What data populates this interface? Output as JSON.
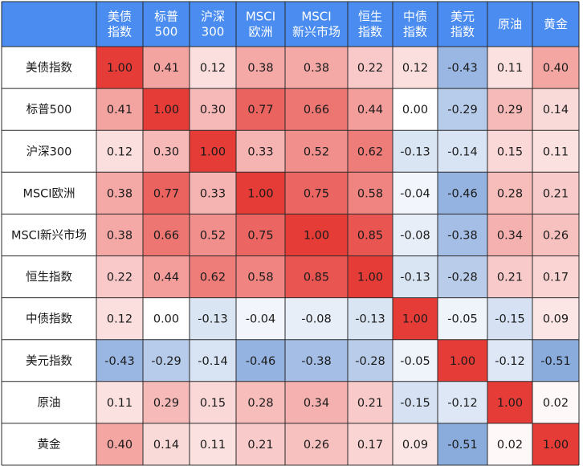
{
  "chart_data": {
    "type": "heatmap",
    "columns": [
      [
        "美债",
        "指数"
      ],
      [
        "标普",
        "500"
      ],
      [
        "沪深",
        "300"
      ],
      [
        "MSCI",
        "欧洲"
      ],
      [
        "MSCI",
        "新兴市场"
      ],
      [
        "恒生",
        "指数"
      ],
      [
        "中债",
        "指数"
      ],
      [
        "美元",
        "指数"
      ],
      [
        "原油"
      ],
      [
        "黄金"
      ]
    ],
    "rows": [
      "美债指数",
      "标普500",
      "沪深300",
      "MSCI欧洲",
      "MSCI新兴市场",
      "恒生指数",
      "中债指数",
      "美元指数",
      "原油",
      "黄金"
    ],
    "values": [
      [
        1.0,
        0.41,
        0.12,
        0.38,
        0.38,
        0.22,
        0.12,
        -0.43,
        0.11,
        0.4
      ],
      [
        0.41,
        1.0,
        0.3,
        0.77,
        0.66,
        0.44,
        0.0,
        -0.29,
        0.29,
        0.14
      ],
      [
        0.12,
        0.3,
        1.0,
        0.33,
        0.52,
        0.62,
        -0.13,
        -0.14,
        0.15,
        0.11
      ],
      [
        0.38,
        0.77,
        0.33,
        1.0,
        0.75,
        0.58,
        -0.04,
        -0.46,
        0.28,
        0.21
      ],
      [
        0.38,
        0.66,
        0.52,
        0.75,
        1.0,
        0.85,
        -0.08,
        -0.38,
        0.34,
        0.26
      ],
      [
        0.22,
        0.44,
        0.62,
        0.58,
        0.85,
        1.0,
        -0.13,
        -0.28,
        0.21,
        0.17
      ],
      [
        0.12,
        0.0,
        -0.13,
        -0.04,
        -0.08,
        -0.13,
        1.0,
        -0.05,
        -0.15,
        0.09
      ],
      [
        -0.43,
        -0.29,
        -0.14,
        -0.46,
        -0.38,
        -0.28,
        -0.05,
        1.0,
        -0.12,
        -0.51
      ],
      [
        0.11,
        0.29,
        0.15,
        0.28,
        0.34,
        0.21,
        -0.15,
        -0.12,
        1.0,
        0.02
      ],
      [
        0.4,
        0.14,
        0.11,
        0.21,
        0.26,
        0.17,
        0.09,
        -0.51,
        0.02,
        1.0
      ]
    ],
    "value_format": "2 decimals",
    "colors": {
      "header_bg": "#4a8cf0",
      "header_text": "#ffffff",
      "positive_max": "#e63c37",
      "negative_max": "#2f6cc3",
      "neutral": "#ffffff",
      "grid": "#2a2a2a"
    }
  }
}
